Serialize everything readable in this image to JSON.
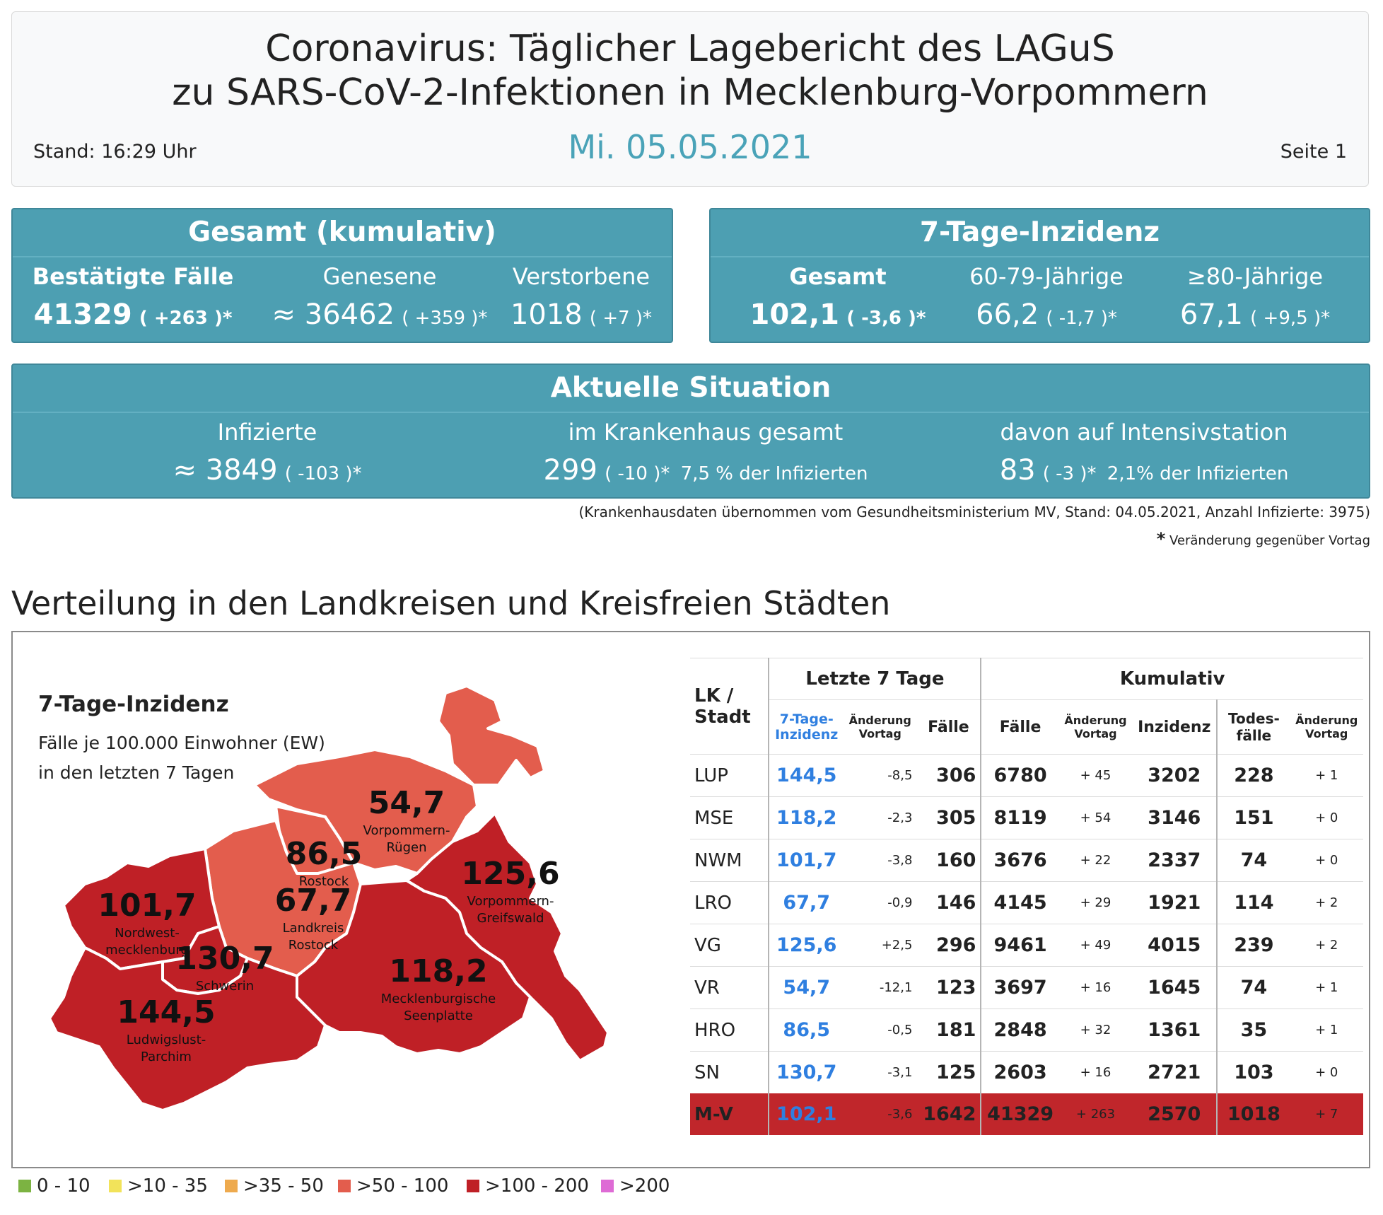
{
  "header": {
    "title_line1": "Coronavirus: Täglicher Lagebericht des LAGuS",
    "title_line2": "zu SARS-CoV-2-Infektionen in Mecklenburg-Vorpommern",
    "stand": "Stand: 16:29 Uhr",
    "date": "Mi. 05.05.2021",
    "page": "Seite 1"
  },
  "gesamt": {
    "title": "Gesamt (kumulativ)",
    "cols": [
      {
        "label": "Bestätigte Fälle",
        "prefix": "",
        "value": "41329",
        "change": "( +263 )*"
      },
      {
        "label": "Genesene",
        "prefix": "≈ ",
        "value": "36462",
        "change": "( +359 )*"
      },
      {
        "label": "Verstorbene",
        "prefix": "",
        "value": "1018",
        "change": "( +7 )*"
      }
    ]
  },
  "inzidenz": {
    "title": "7-Tage-Inzidenz",
    "cols": [
      {
        "label": "Gesamt",
        "value": "102,1",
        "change": "( -3,6 )*"
      },
      {
        "label": "60-79-Jährige",
        "value": "66,2",
        "change": "( -1,7 )*"
      },
      {
        "label": "≥80-Jährige",
        "value": "67,1",
        "change": "( +9,5 )*"
      }
    ]
  },
  "aktuell": {
    "title": "Aktuelle Situation",
    "cols": [
      {
        "label": "Infizierte",
        "prefix": "≈ ",
        "value": "3849",
        "change": "( -103 )*",
        "extra": ""
      },
      {
        "label": "im Krankenhaus gesamt",
        "prefix": "",
        "value": "299",
        "change": "( -10 )*",
        "extra": "7,5 % der Infizierten"
      },
      {
        "label": "davon auf Intensivstation",
        "prefix": "",
        "value": "83",
        "change": "( -3 )*",
        "extra": "2,1% der Infizierten"
      }
    ]
  },
  "notes": {
    "krankenhaus": "(Krankenhausdaten übernommen vom Gesundheitsministerium MV, Stand: 04.05.2021, Anzahl Infizierte: 3975)",
    "star": "*",
    "veraenderung": "Veränderung gegenüber Vortag"
  },
  "section_title": "Verteilung in den Landkreisen und Kreisfreien Städten",
  "map": {
    "title": "7-Tage-Inzidenz",
    "sub1": "Fälle je 100.000 Einwohner (EW)",
    "sub2": "in den letzten 7 Tagen",
    "regions": [
      {
        "value": "54,7",
        "name1": "Vorpommern-",
        "name2": "Rügen"
      },
      {
        "value": "86,5",
        "name1": "Rostock",
        "name2": ""
      },
      {
        "value": "125,6",
        "name1": "Vorpommern-",
        "name2": "Greifswald"
      },
      {
        "value": "101,7",
        "name1": "Nordwest-",
        "name2": "mecklenburg"
      },
      {
        "value": "67,7",
        "name1": "Landkreis",
        "name2": "Rostock"
      },
      {
        "value": "130,7",
        "name1": "Schwerin",
        "name2": ""
      },
      {
        "value": "118,2",
        "name1": "Mecklenburgische",
        "name2": "Seenplatte"
      },
      {
        "value": "144,5",
        "name1": "Ludwigslust-",
        "name2": "Parchim"
      }
    ],
    "colors": {
      "red_dark": "#bf2026",
      "red_light": "#e35d4d",
      "stroke": "#ffffff"
    }
  },
  "table": {
    "h_lk": "LK /",
    "h_stadt": "Stadt",
    "h_letzte": "Letzte 7 Tage",
    "h_kumulativ": "Kumulativ",
    "h_inz1": "7-Tage-",
    "h_inz2": "Inzidenz",
    "h_aend1": "Änderung",
    "h_aend2": "Vortag",
    "h_faelle": "Fälle",
    "h_kfaelle": "Fälle",
    "h_kaend1": "Änderung",
    "h_kaend2": "Vortag",
    "h_kinz": "Inzidenz",
    "h_tod1": "Todes-",
    "h_tod2": "fälle",
    "h_taend1": "Änderung",
    "h_taend2": "Vortag",
    "rows": [
      {
        "lk": "LUP",
        "inz": "144,5",
        "chg": "-8,5",
        "f7": "306",
        "cf": "6780",
        "cchg": "+ 45",
        "cinz": "3202",
        "tod": "228",
        "tchg": "+ 1"
      },
      {
        "lk": "MSE",
        "inz": "118,2",
        "chg": "-2,3",
        "f7": "305",
        "cf": "8119",
        "cchg": "+ 54",
        "cinz": "3146",
        "tod": "151",
        "tchg": "+ 0"
      },
      {
        "lk": "NWM",
        "inz": "101,7",
        "chg": "-3,8",
        "f7": "160",
        "cf": "3676",
        "cchg": "+ 22",
        "cinz": "2337",
        "tod": "74",
        "tchg": "+ 0"
      },
      {
        "lk": "LRO",
        "inz": "67,7",
        "chg": "-0,9",
        "f7": "146",
        "cf": "4145",
        "cchg": "+ 29",
        "cinz": "1921",
        "tod": "114",
        "tchg": "+ 2"
      },
      {
        "lk": "VG",
        "inz": "125,6",
        "chg": "+2,5",
        "f7": "296",
        "cf": "9461",
        "cchg": "+ 49",
        "cinz": "4015",
        "tod": "239",
        "tchg": "+ 2"
      },
      {
        "lk": "VR",
        "inz": "54,7",
        "chg": "-12,1",
        "f7": "123",
        "cf": "3697",
        "cchg": "+ 16",
        "cinz": "1645",
        "tod": "74",
        "tchg": "+ 1"
      },
      {
        "lk": "HRO",
        "inz": "86,5",
        "chg": "-0,5",
        "f7": "181",
        "cf": "2848",
        "cchg": "+ 32",
        "cinz": "1361",
        "tod": "35",
        "tchg": "+ 1"
      },
      {
        "lk": "SN",
        "inz": "130,7",
        "chg": "-3,1",
        "f7": "125",
        "cf": "2603",
        "cchg": "+ 16",
        "cinz": "2721",
        "tod": "103",
        "tchg": "+ 0"
      }
    ],
    "total": {
      "lk": "M-V",
      "inz": "102,1",
      "chg": "-3,6",
      "f7": "1642",
      "cf": "41329",
      "cchg": "+ 263",
      "cinz": "2570",
      "tod": "1018",
      "tchg": "+ 7"
    }
  },
  "legend": [
    {
      "label": "0 - 10",
      "color": "#7cb342"
    },
    {
      "label": ">10 - 35",
      "color": "#f2e35a"
    },
    {
      "label": ">35 - 50",
      "color": "#eeaa4e"
    },
    {
      "label": ">50 - 100",
      "color": "#e35d4d"
    },
    {
      "label": ">100 - 200",
      "color": "#bf2026"
    },
    {
      "label": ">200",
      "color": "#de6bd5"
    }
  ]
}
